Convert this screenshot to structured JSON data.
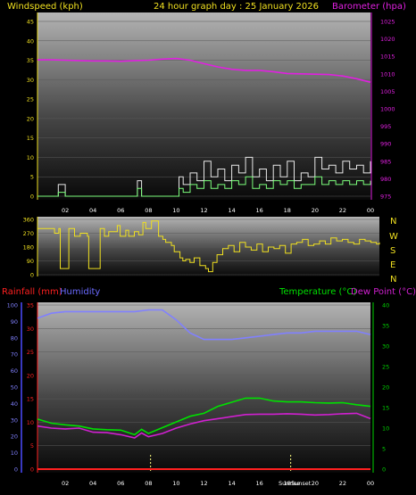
{
  "header": {
    "left_label": "Windspeed (kph)",
    "title": "24 hour graph day : 25 January 2026",
    "right_label": "Barometer (hpa)"
  },
  "wind_dir_labels": [
    "N",
    "W",
    "S",
    "E",
    "N"
  ],
  "lower_header": {
    "rain_label": "Rainfall (mm)",
    "humidity_label": "Humidity",
    "temp_label": "Temperature (°C)",
    "dew_label": "Dew Point (°C)"
  },
  "sun_labels": {
    "sunrise": "Sunrise",
    "sunset": "Sunset"
  },
  "colors": {
    "wind_gust": "#e8e8e8",
    "wind_avg": "#7cff7c",
    "barometer": "#e020e0",
    "direction": "#f0e020",
    "temperature": "#00e000",
    "dewpoint": "#d020d0",
    "humidity": "#8080ff",
    "rainfall": "#ff2020",
    "left_axis_top": "#f0e020",
    "left_axis_humidity": "#4a4aff",
    "right_axis_temp": "#00d000"
  },
  "chart_data": [
    {
      "type": "line",
      "name": "wind-barometer",
      "x_ticks": [
        "02",
        "04",
        "06",
        "08",
        "10",
        "12",
        "14",
        "16",
        "18",
        "20",
        "22",
        "00"
      ],
      "y_left": {
        "label": "Windspeed (kph)",
        "min": 0,
        "max": 45,
        "ticks": [
          0,
          5,
          10,
          15,
          20,
          25,
          30,
          35,
          40,
          45
        ]
      },
      "y_right": {
        "label": "Barometer (hpa)",
        "min": 975,
        "max": 1025,
        "ticks": [
          975,
          980,
          985,
          990,
          995,
          1000,
          1005,
          1010,
          1015,
          1020,
          1025
        ]
      },
      "series": [
        {
          "name": "Barometer (hpa)",
          "axis": "right",
          "x": [
            0,
            1,
            2,
            3,
            4,
            5,
            6,
            7,
            8,
            9,
            10,
            11,
            12,
            13,
            14,
            15,
            16,
            17,
            18,
            19,
            20,
            21,
            22,
            23,
            24
          ],
          "values": [
            1014.0,
            1014.0,
            1013.9,
            1013.8,
            1013.7,
            1013.7,
            1013.6,
            1013.8,
            1013.9,
            1014.2,
            1014.4,
            1013.9,
            1012.9,
            1012.0,
            1011.3,
            1011.0,
            1011.0,
            1010.6,
            1010.1,
            1010.0,
            1009.9,
            1009.8,
            1009.4,
            1008.6,
            1007.6
          ]
        },
        {
          "name": "Wind gust",
          "axis": "left",
          "x": [
            0,
            1,
            1.5,
            2,
            3,
            4,
            5,
            6,
            7,
            7.2,
            7.5,
            8,
            9,
            10,
            10.2,
            10.5,
            11,
            11.5,
            12,
            12.5,
            13,
            13.5,
            14,
            14.5,
            15,
            15.5,
            16,
            16.5,
            17,
            17.5,
            18,
            18.5,
            19,
            19.5,
            20,
            20.5,
            21,
            21.5,
            22,
            22.5,
            23,
            23.5,
            24
          ],
          "values": [
            0,
            0,
            3,
            0,
            0,
            0,
            0,
            0,
            0,
            4,
            0,
            0,
            0,
            0,
            5,
            3,
            6,
            4,
            9,
            5,
            7,
            4,
            8,
            6,
            10,
            5,
            7,
            4,
            8,
            5,
            9,
            4,
            6,
            5,
            10,
            7,
            8,
            6,
            9,
            7,
            8,
            6,
            9
          ]
        },
        {
          "name": "Wind average",
          "axis": "left",
          "x": [
            0,
            1,
            1.5,
            2,
            3,
            4,
            5,
            6,
            7,
            7.2,
            7.5,
            8,
            9,
            10,
            10.2,
            10.5,
            11,
            11.5,
            12,
            12.5,
            13,
            13.5,
            14,
            14.5,
            15,
            15.5,
            16,
            16.5,
            17,
            17.5,
            18,
            18.5,
            19,
            19.5,
            20,
            20.5,
            21,
            21.5,
            22,
            22.5,
            23,
            23.5,
            24
          ],
          "values": [
            0,
            0,
            1,
            0,
            0,
            0,
            0,
            0,
            0,
            2,
            0,
            0,
            0,
            0,
            2,
            1,
            3,
            2,
            4,
            2,
            3,
            2,
            4,
            3,
            5,
            2,
            3,
            2,
            4,
            3,
            4,
            2,
            3,
            3,
            5,
            3,
            4,
            3,
            4,
            3,
            4,
            3,
            4
          ]
        }
      ]
    },
    {
      "type": "line",
      "name": "wind-direction",
      "y": {
        "min": 0,
        "max": 360,
        "ticks": [
          0,
          90,
          180,
          270,
          360
        ]
      },
      "series": [
        {
          "name": "Wind direction",
          "x": [
            0,
            0.6,
            1.2,
            1.5,
            1.6,
            2.0,
            2.2,
            2.6,
            3.0,
            3.5,
            3.6,
            4.2,
            4.4,
            4.7,
            5.0,
            5.6,
            5.8,
            6.2,
            6.4,
            6.8,
            7.1,
            7.4,
            7.6,
            8.0,
            8.5,
            8.8,
            9.0,
            9.4,
            9.6,
            10.0,
            10.2,
            10.4,
            10.7,
            11.0,
            11.4,
            11.8,
            12.0,
            12.3,
            12.6,
            13.0,
            13.4,
            13.8,
            14.2,
            14.6,
            15.0,
            15.4,
            15.8,
            16.2,
            16.6,
            17.0,
            17.4,
            17.8,
            18.2,
            18.6,
            19.0,
            19.4,
            19.8,
            20.2,
            20.6,
            21.0,
            21.4,
            21.8,
            22.2,
            22.6,
            23.0,
            23.4,
            23.8,
            24
          ],
          "values": [
            300,
            300,
            270,
            300,
            40,
            40,
            300,
            250,
            270,
            250,
            40,
            40,
            300,
            250,
            280,
            320,
            250,
            290,
            250,
            280,
            260,
            340,
            300,
            350,
            250,
            230,
            210,
            190,
            150,
            110,
            90,
            100,
            80,
            110,
            60,
            40,
            20,
            80,
            130,
            170,
            190,
            150,
            210,
            180,
            160,
            200,
            150,
            180,
            170,
            190,
            140,
            200,
            210,
            230,
            190,
            200,
            220,
            200,
            240,
            220,
            230,
            210,
            200,
            230,
            220,
            210,
            200,
            210
          ]
        }
      ]
    },
    {
      "type": "line",
      "name": "temperature-humidity",
      "x_ticks": [
        "02",
        "04",
        "06",
        "08",
        "10",
        "12",
        "14",
        "16",
        "18",
        "20",
        "22",
        "00"
      ],
      "y_left_humidity": {
        "label": "Humidity",
        "min": 0,
        "max": 100,
        "ticks": [
          0,
          10,
          20,
          30,
          40,
          50,
          60,
          70,
          80,
          90,
          100
        ]
      },
      "y_left_rain": {
        "label": "Rainfall (mm)",
        "min": 0,
        "max": 35,
        "ticks": [
          0,
          5,
          10,
          15,
          20,
          25,
          30,
          35
        ]
      },
      "y_right": {
        "label": "Temperature (°C)",
        "min": 0,
        "max": 40,
        "ticks": [
          0,
          5,
          10,
          15,
          20,
          25,
          30,
          35,
          40
        ]
      },
      "series": [
        {
          "name": "Humidity",
          "axis": "humidity",
          "x": [
            0,
            1,
            2,
            3,
            4,
            5,
            6,
            7,
            8,
            9,
            10,
            11,
            12,
            13,
            14,
            15,
            16,
            17,
            18,
            19,
            20,
            21,
            22,
            23,
            24
          ],
          "values": [
            92,
            95,
            96,
            96,
            96,
            96,
            96,
            96,
            97,
            97,
            91,
            83,
            79,
            79,
            79,
            80,
            81,
            82,
            83,
            83,
            84,
            84,
            84,
            84,
            82
          ]
        },
        {
          "name": "Temperature (°C)",
          "axis": "temp",
          "x": [
            0,
            1,
            2,
            3,
            4,
            5,
            6,
            7,
            7.5,
            8,
            9,
            10,
            11,
            12,
            13,
            14,
            15,
            16,
            17,
            18,
            19,
            20,
            21,
            22,
            23,
            24
          ],
          "values": [
            12.2,
            11.2,
            10.8,
            10.5,
            9.8,
            9.6,
            9.5,
            8.4,
            9.7,
            8.7,
            10.1,
            11.5,
            12.9,
            13.6,
            15.3,
            16.3,
            17.3,
            17.3,
            16.6,
            16.4,
            16.4,
            16.2,
            16.1,
            16.2,
            15.7,
            15.3
          ]
        },
        {
          "name": "Dew Point (°C)",
          "axis": "temp",
          "x": [
            0,
            1,
            2,
            3,
            4,
            5,
            6,
            7,
            7.5,
            8,
            9,
            10,
            11,
            12,
            13,
            14,
            15,
            16,
            17,
            18,
            19,
            20,
            21,
            22,
            23,
            24
          ],
          "values": [
            10.5,
            10.0,
            9.8,
            10.0,
            9.0,
            8.9,
            8.4,
            7.6,
            8.8,
            7.9,
            8.7,
            10.0,
            11.0,
            11.8,
            12.3,
            12.8,
            13.3,
            13.4,
            13.4,
            13.5,
            13.4,
            13.2,
            13.3,
            13.5,
            13.6,
            12.3
          ]
        },
        {
          "name": "Rainfall (mm)",
          "axis": "rain",
          "x": [
            0,
            24
          ],
          "values": [
            0,
            0
          ]
        }
      ]
    }
  ]
}
